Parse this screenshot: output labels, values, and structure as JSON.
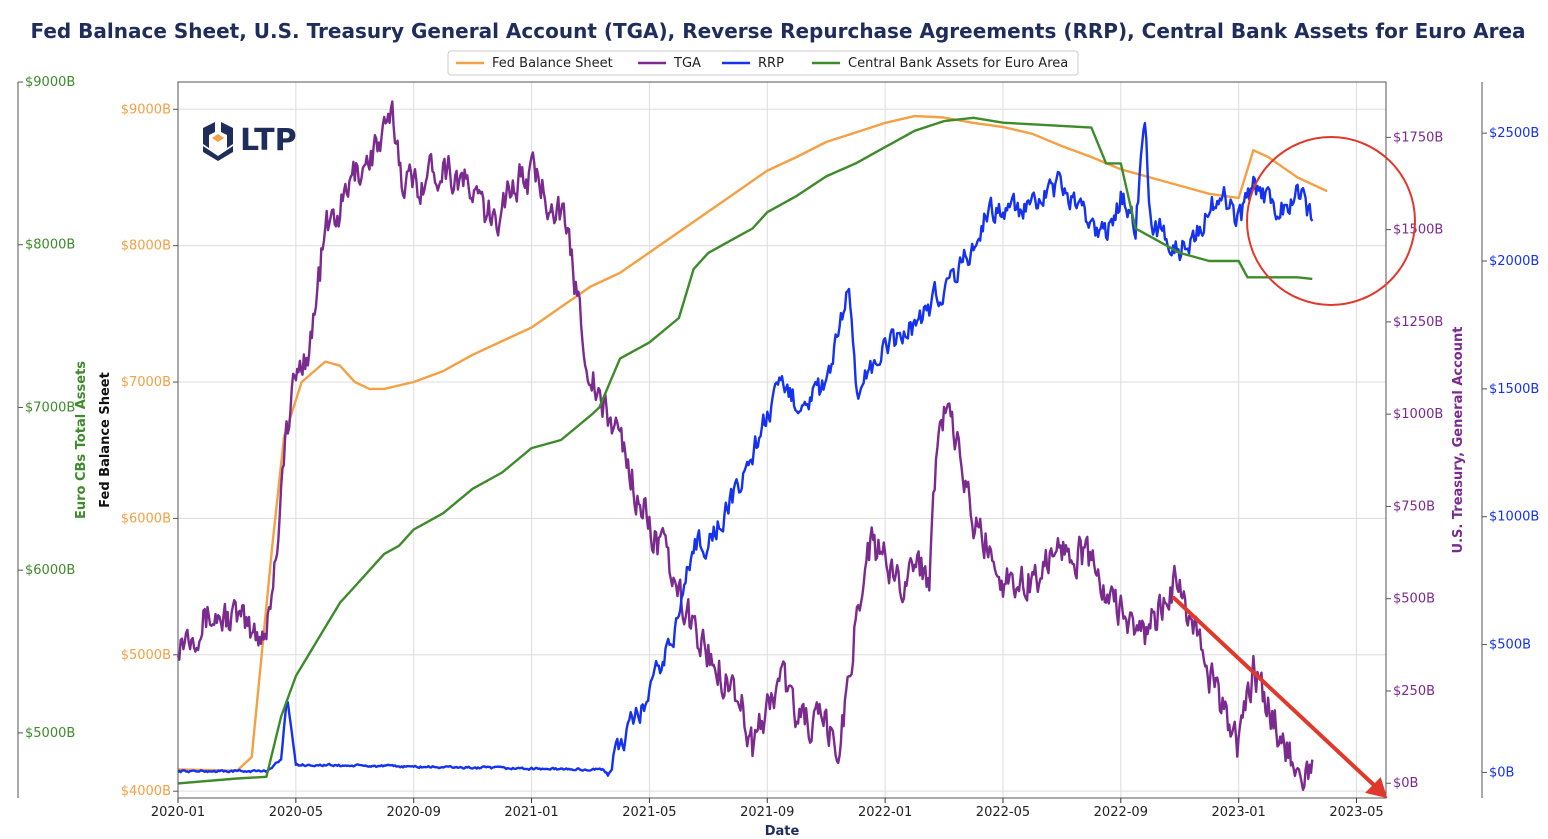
{
  "chart_data": {
    "type": "line",
    "title": "Fed Balnace Sheet, U.S. Treasury General Account (TGA), Reverse Repurchase Agreements (RRP), Central Bank Assets for Euro Area",
    "xlabel": "Date",
    "logo_text": "LTP",
    "grid": true,
    "legend_position": "top-center",
    "x_ticks": [
      "2020-01",
      "2020-05",
      "2020-09",
      "2021-01",
      "2021-05",
      "2021-09",
      "2022-01",
      "2022-05",
      "2022-09",
      "2023-01",
      "2023-05"
    ],
    "axes": {
      "euro": {
        "label": "Euro CBs Total Assets",
        "color": "#3d8b2a",
        "range": [
          4600,
          9000
        ],
        "ticks": [
          {
            "value": 5000,
            "label": "$5000B"
          },
          {
            "value": 6000,
            "label": "$6000B"
          },
          {
            "value": 7000,
            "label": "$7000B"
          },
          {
            "value": 8000,
            "label": "$8000B"
          },
          {
            "value": 9000,
            "label": "$9000B"
          }
        ]
      },
      "fed": {
        "label": "Fed Balance Sheet",
        "color": "#f4a044",
        "range": [
          3950,
          9200
        ],
        "ticks": [
          {
            "value": 4000,
            "label": "$4000B"
          },
          {
            "value": 5000,
            "label": "$5000B"
          },
          {
            "value": 6000,
            "label": "$6000B"
          },
          {
            "value": 7000,
            "label": "$7000B"
          },
          {
            "value": 8000,
            "label": "$8000B"
          },
          {
            "value": 9000,
            "label": "$9000B"
          }
        ]
      },
      "tga": {
        "label": "U.S. Treasury, General Account",
        "color": "#7b2a8f",
        "range": [
          -40,
          1900
        ],
        "ticks": [
          {
            "value": 0,
            "label": "$0B"
          },
          {
            "value": 250,
            "label": "$250B"
          },
          {
            "value": 500,
            "label": "$500B"
          },
          {
            "value": 750,
            "label": "$750B"
          },
          {
            "value": 1000,
            "label": "$1000B"
          },
          {
            "value": 1250,
            "label": "$1250B"
          },
          {
            "value": 1500,
            "label": "$1500B"
          },
          {
            "value": 1750,
            "label": "$1750B"
          }
        ]
      },
      "rrp": {
        "color": "#1432f0",
        "range": [
          -100,
          2700
        ],
        "ticks": [
          {
            "value": 0,
            "label": "$0B"
          },
          {
            "value": 500,
            "label": "$500B"
          },
          {
            "value": 1000,
            "label": "$1000B"
          },
          {
            "value": 1500,
            "label": "$1500B"
          },
          {
            "value": 2000,
            "label": "$2000B"
          },
          {
            "value": 2500,
            "label": "$2500B"
          }
        ]
      }
    },
    "series": [
      {
        "name": "Fed Balance Sheet",
        "axis": "fed",
        "color": "#f4a044",
        "noise": 0,
        "points": [
          [
            0,
            4160
          ],
          [
            2,
            4150
          ],
          [
            2.5,
            4250
          ],
          [
            3.2,
            5800
          ],
          [
            3.6,
            6600
          ],
          [
            4.2,
            7000
          ],
          [
            5,
            7150
          ],
          [
            5.5,
            7120
          ],
          [
            6,
            7000
          ],
          [
            6.5,
            6950
          ],
          [
            7,
            6950
          ],
          [
            8,
            7000
          ],
          [
            9,
            7080
          ],
          [
            10,
            7200
          ],
          [
            11,
            7300
          ],
          [
            12,
            7400
          ],
          [
            13,
            7550
          ],
          [
            14,
            7700
          ],
          [
            15,
            7800
          ],
          [
            16,
            7950
          ],
          [
            17,
            8100
          ],
          [
            18,
            8250
          ],
          [
            19,
            8400
          ],
          [
            20,
            8550
          ],
          [
            21,
            8650
          ],
          [
            22,
            8760
          ],
          [
            23,
            8830
          ],
          [
            24,
            8900
          ],
          [
            25,
            8950
          ],
          [
            26,
            8940
          ],
          [
            27,
            8900
          ],
          [
            28,
            8870
          ],
          [
            29,
            8820
          ],
          [
            30,
            8730
          ],
          [
            31,
            8650
          ],
          [
            32,
            8560
          ],
          [
            33,
            8500
          ],
          [
            34,
            8440
          ],
          [
            35,
            8380
          ],
          [
            36,
            8350
          ],
          [
            36.5,
            8700
          ],
          [
            37,
            8650
          ],
          [
            38,
            8500
          ],
          [
            39,
            8400
          ]
        ]
      },
      {
        "name": "TGA",
        "axis": "tga",
        "color": "#7b2a8f",
        "noise": 45,
        "points": [
          [
            0,
            390
          ],
          [
            1,
            450
          ],
          [
            2,
            450
          ],
          [
            2.5,
            400
          ],
          [
            3,
            420
          ],
          [
            3.3,
            600
          ],
          [
            3.6,
            900
          ],
          [
            4,
            1100
          ],
          [
            4.5,
            1200
          ],
          [
            5,
            1500
          ],
          [
            5.5,
            1550
          ],
          [
            6,
            1650
          ],
          [
            7,
            1750
          ],
          [
            7.3,
            1800
          ],
          [
            7.6,
            1650
          ],
          [
            8,
            1620
          ],
          [
            8.5,
            1650
          ],
          [
            9,
            1680
          ],
          [
            10,
            1600
          ],
          [
            10.8,
            1500
          ],
          [
            11,
            1600
          ],
          [
            12,
            1650
          ],
          [
            13,
            1550
          ],
          [
            13.5,
            1350
          ],
          [
            14,
            1100
          ],
          [
            14.5,
            1000
          ],
          [
            15,
            950
          ],
          [
            15.5,
            800
          ],
          [
            16,
            700
          ],
          [
            16.5,
            620
          ],
          [
            17,
            500
          ],
          [
            18,
            350
          ],
          [
            19,
            250
          ],
          [
            19.5,
            100
          ],
          [
            20,
            200
          ],
          [
            20.5,
            300
          ],
          [
            21,
            180
          ],
          [
            22,
            150
          ],
          [
            22.4,
            80
          ],
          [
            22.8,
            300
          ],
          [
            23,
            450
          ],
          [
            23.5,
            650
          ],
          [
            24,
            600
          ],
          [
            24.5,
            550
          ],
          [
            25,
            600
          ],
          [
            25.5,
            560
          ],
          [
            25.8,
            1000
          ],
          [
            26,
            1000
          ],
          [
            26.5,
            900
          ],
          [
            27,
            700
          ],
          [
            27.5,
            650
          ],
          [
            28,
            550
          ],
          [
            29,
            550
          ],
          [
            30,
            650
          ],
          [
            31,
            600
          ],
          [
            31.5,
            500
          ],
          [
            32,
            480
          ],
          [
            32.5,
            400
          ],
          [
            33,
            420
          ],
          [
            33.5,
            500
          ],
          [
            34,
            550
          ],
          [
            34.5,
            400
          ],
          [
            35,
            300
          ],
          [
            35.5,
            200
          ],
          [
            36,
            100
          ],
          [
            36.5,
            300
          ],
          [
            37,
            200
          ],
          [
            37.5,
            120
          ],
          [
            38,
            50
          ],
          [
            38.5,
            30
          ]
        ]
      },
      {
        "name": "RRP",
        "axis": "rrp",
        "color": "#1432f0",
        "noise": 45,
        "points": [
          [
            0,
            5
          ],
          [
            3,
            5
          ],
          [
            3.5,
            50
          ],
          [
            3.7,
            300
          ],
          [
            4,
            30
          ],
          [
            14.5,
            10
          ],
          [
            15,
            100
          ],
          [
            16,
            300
          ],
          [
            17,
            600
          ],
          [
            17.5,
            900
          ],
          [
            18,
            900
          ],
          [
            19,
            1100
          ],
          [
            20,
            1400
          ],
          [
            20.5,
            1500
          ],
          [
            21,
            1450
          ],
          [
            22,
            1500
          ],
          [
            22.8,
            1900
          ],
          [
            23,
            1500
          ],
          [
            24,
            1650
          ],
          [
            25,
            1750
          ],
          [
            26,
            1900
          ],
          [
            27,
            2050
          ],
          [
            27.5,
            2200
          ],
          [
            28,
            2200
          ],
          [
            29,
            2200
          ],
          [
            30,
            2300
          ],
          [
            30.5,
            2200
          ],
          [
            31,
            2150
          ],
          [
            31.5,
            2100
          ],
          [
            32,
            2250
          ],
          [
            32.5,
            2150
          ],
          [
            32.8,
            2550
          ],
          [
            33,
            2150
          ],
          [
            33.5,
            2100
          ],
          [
            34,
            2050
          ],
          [
            34.5,
            2100
          ],
          [
            35,
            2200
          ],
          [
            35.5,
            2250
          ],
          [
            36,
            2150
          ],
          [
            36.5,
            2300
          ],
          [
            37,
            2250
          ],
          [
            37.5,
            2200
          ],
          [
            38,
            2300
          ],
          [
            38.5,
            2150
          ]
        ]
      },
      {
        "name": "Central Bank Assets for Euro Area",
        "axis": "euro",
        "color": "#3d8b2a",
        "noise": 0,
        "points": [
          [
            0,
            4690
          ],
          [
            2,
            4720
          ],
          [
            3,
            4730
          ],
          [
            3.5,
            5100
          ],
          [
            4,
            5350
          ],
          [
            4.5,
            5500
          ],
          [
            5,
            5650
          ],
          [
            5.5,
            5800
          ],
          [
            6,
            5900
          ],
          [
            6.5,
            6000
          ],
          [
            7,
            6100
          ],
          [
            7.5,
            6150
          ],
          [
            8,
            6250
          ],
          [
            8.5,
            6300
          ],
          [
            9,
            6350
          ],
          [
            10,
            6500
          ],
          [
            11,
            6600
          ],
          [
            12,
            6750
          ],
          [
            13,
            6800
          ],
          [
            14,
            6950
          ],
          [
            14.3,
            7000
          ],
          [
            15,
            7300
          ],
          [
            16,
            7400
          ],
          [
            17,
            7550
          ],
          [
            17.5,
            7850
          ],
          [
            18,
            7950
          ],
          [
            19,
            8050
          ],
          [
            19.5,
            8100
          ],
          [
            20,
            8200
          ],
          [
            21,
            8300
          ],
          [
            22,
            8420
          ],
          [
            23,
            8500
          ],
          [
            24,
            8600
          ],
          [
            25,
            8700
          ],
          [
            26,
            8760
          ],
          [
            27,
            8780
          ],
          [
            28,
            8750
          ],
          [
            29,
            8740
          ],
          [
            30,
            8730
          ],
          [
            31,
            8720
          ],
          [
            31.5,
            8500
          ],
          [
            32,
            8500
          ],
          [
            32.5,
            8100
          ],
          [
            33,
            8050
          ],
          [
            34,
            7950
          ],
          [
            35,
            7900
          ],
          [
            36,
            7900
          ],
          [
            36.3,
            7800
          ],
          [
            37,
            7800
          ],
          [
            38,
            7800
          ],
          [
            38.5,
            7790
          ]
        ]
      }
    ]
  }
}
